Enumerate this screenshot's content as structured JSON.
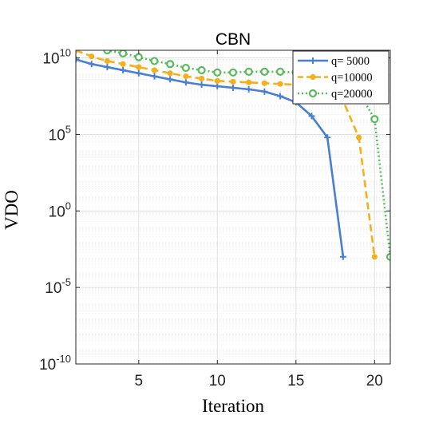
{
  "chart_data": {
    "type": "line",
    "title": "CBN",
    "xlabel": "Iteration",
    "ylabel": "VDO",
    "xlim": [
      1,
      21
    ],
    "ylim_log10": [
      -10,
      10.5
    ],
    "y_scale": "log",
    "grid": true,
    "minor_grid": true,
    "legend_position": "top-right",
    "x_ticks": [
      5,
      10,
      15,
      20
    ],
    "x_tick_labels": [
      "5",
      "10",
      "15",
      "20"
    ],
    "y_ticks_log10": [
      -10,
      -5,
      0,
      5,
      10
    ],
    "y_tick_labels": [
      {
        "base": "10",
        "exp": "-10"
      },
      {
        "base": "10",
        "exp": "-5"
      },
      {
        "base": "10",
        "exp": "0"
      },
      {
        "base": "10",
        "exp": "5"
      },
      {
        "base": "10",
        "exp": "10"
      }
    ],
    "series": [
      {
        "name": "q= 5000",
        "color": "#4a7fd0",
        "dash": "solid",
        "marker": "plus",
        "x": [
          1,
          2,
          3,
          4,
          5,
          6,
          7,
          8,
          9,
          10,
          11,
          12,
          13,
          14,
          15,
          16,
          17,
          18
        ],
        "y_log10": [
          9.9,
          9.6,
          9.4,
          9.2,
          9.0,
          8.8,
          8.6,
          8.4,
          8.25,
          8.15,
          8.05,
          7.95,
          7.8,
          7.5,
          7.1,
          6.2,
          4.8,
          -3.0
        ]
      },
      {
        "name": "q=10000",
        "color": "#f2b01e",
        "dash": "dashed",
        "marker": "dot",
        "x": [
          1,
          2,
          3,
          4,
          5,
          6,
          7,
          8,
          9,
          10,
          11,
          12,
          13,
          14,
          15,
          16,
          17,
          18,
          19,
          20
        ],
        "y_log10": [
          10.5,
          10.1,
          9.8,
          9.6,
          9.4,
          9.2,
          9.0,
          8.8,
          8.65,
          8.5,
          8.45,
          8.4,
          8.35,
          8.3,
          8.25,
          8.2,
          7.8,
          7.2,
          4.8,
          -3.0
        ]
      },
      {
        "name": "q=20000",
        "color": "#5cb85c",
        "dash": "dotted",
        "marker": "circle",
        "x": [
          1,
          2,
          3,
          4,
          5,
          6,
          7,
          8,
          9,
          10,
          11,
          12,
          13,
          14,
          15,
          16,
          17,
          18,
          19,
          20,
          21
        ],
        "y_log10": [
          11.1,
          10.75,
          10.5,
          10.3,
          10.05,
          9.8,
          9.6,
          9.35,
          9.2,
          9.05,
          9.05,
          9.1,
          9.1,
          9.1,
          9.05,
          8.95,
          8.8,
          8.5,
          7.8,
          6.0,
          -3.0
        ]
      }
    ]
  }
}
